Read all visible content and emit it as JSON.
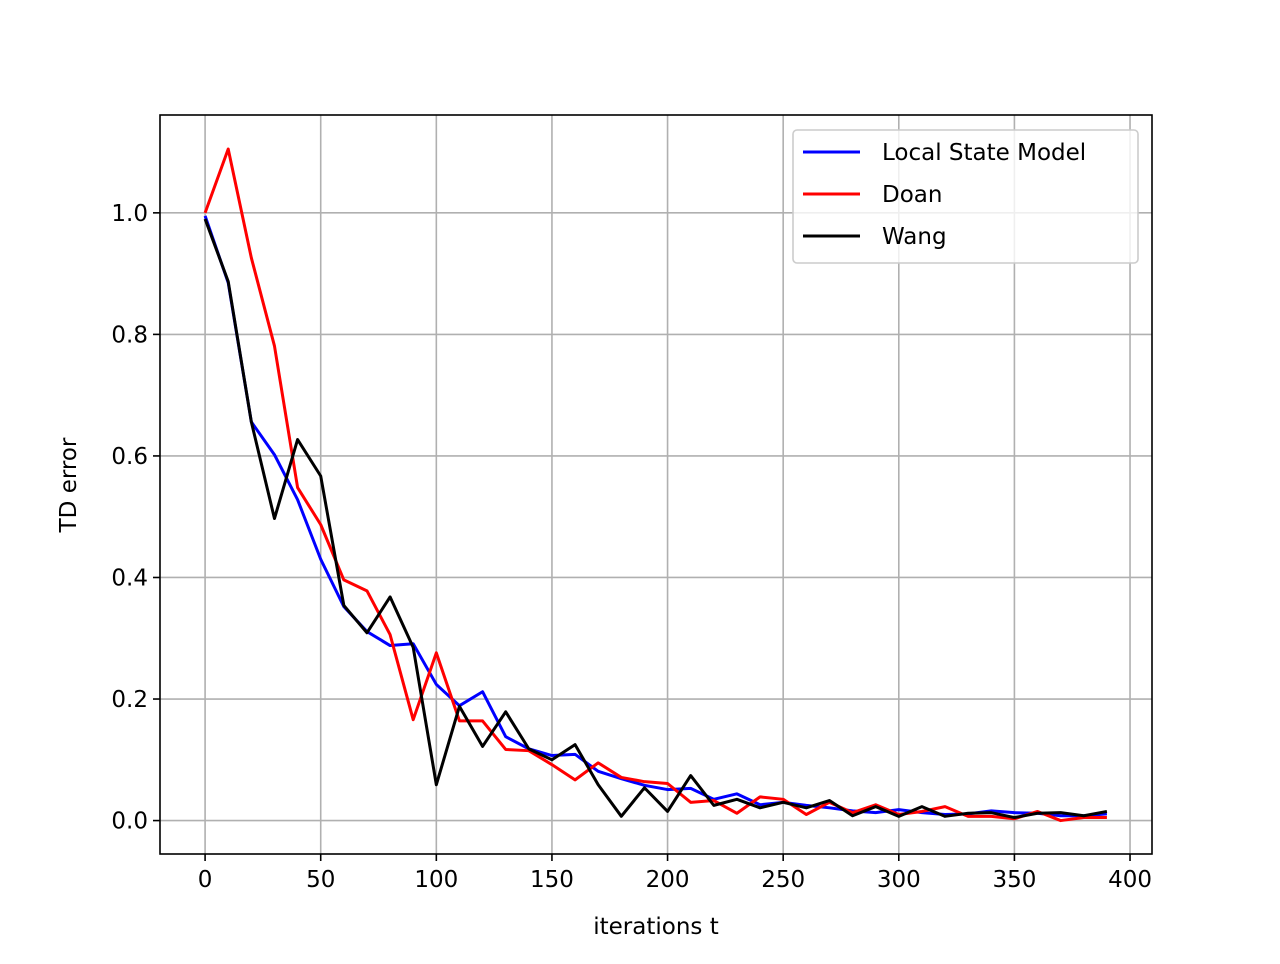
{
  "chart_data": {
    "type": "line",
    "xlabel": "iterations t",
    "ylabel": "TD error",
    "x": [
      0,
      10,
      20,
      30,
      40,
      50,
      60,
      70,
      80,
      90,
      100,
      110,
      120,
      130,
      140,
      150,
      160,
      170,
      180,
      190,
      200,
      210,
      220,
      230,
      240,
      250,
      260,
      270,
      280,
      290,
      300,
      310,
      320,
      330,
      340,
      350,
      360,
      370,
      380,
      390
    ],
    "series": [
      {
        "name": "Local State Model",
        "color": "#0000ff",
        "values": [
          0.995,
          0.885,
          0.656,
          0.602,
          0.528,
          0.43,
          0.352,
          0.311,
          0.288,
          0.291,
          0.224,
          0.189,
          0.212,
          0.138,
          0.118,
          0.107,
          0.109,
          0.081,
          0.069,
          0.058,
          0.051,
          0.053,
          0.035,
          0.044,
          0.026,
          0.03,
          0.025,
          0.021,
          0.016,
          0.013,
          0.018,
          0.013,
          0.01,
          0.011,
          0.016,
          0.013,
          0.012,
          0.008,
          0.008,
          0.011
        ]
      },
      {
        "name": "Doan",
        "color": "#ff0000",
        "values": [
          1.0,
          1.105,
          0.926,
          0.781,
          0.548,
          0.487,
          0.396,
          0.378,
          0.306,
          0.166,
          0.276,
          0.164,
          0.164,
          0.117,
          0.115,
          0.092,
          0.067,
          0.095,
          0.071,
          0.064,
          0.061,
          0.03,
          0.033,
          0.012,
          0.039,
          0.035,
          0.01,
          0.03,
          0.013,
          0.026,
          0.01,
          0.015,
          0.023,
          0.007,
          0.007,
          0.003,
          0.015,
          0.0,
          0.005,
          0.005
        ]
      },
      {
        "name": "Wang",
        "color": "#000000",
        "values": [
          0.99,
          0.887,
          0.656,
          0.497,
          0.627,
          0.567,
          0.354,
          0.309,
          0.368,
          0.285,
          0.059,
          0.188,
          0.122,
          0.179,
          0.118,
          0.1,
          0.125,
          0.059,
          0.007,
          0.054,
          0.015,
          0.074,
          0.025,
          0.035,
          0.021,
          0.03,
          0.021,
          0.033,
          0.008,
          0.023,
          0.007,
          0.023,
          0.007,
          0.012,
          0.013,
          0.005,
          0.012,
          0.013,
          0.008,
          0.015
        ]
      }
    ],
    "xlim": [
      -19.5,
      409.5
    ],
    "xticks": [
      0,
      50,
      100,
      150,
      200,
      250,
      300,
      350,
      400
    ],
    "ylim": [
      -0.055,
      1.161
    ],
    "yticks": [
      {
        "value": 0,
        "label": "0.0"
      },
      0.2,
      0.4,
      0.6,
      0.8,
      {
        "value": 1,
        "label": "1.0"
      }
    ],
    "grid": true,
    "legend": "upper right"
  }
}
